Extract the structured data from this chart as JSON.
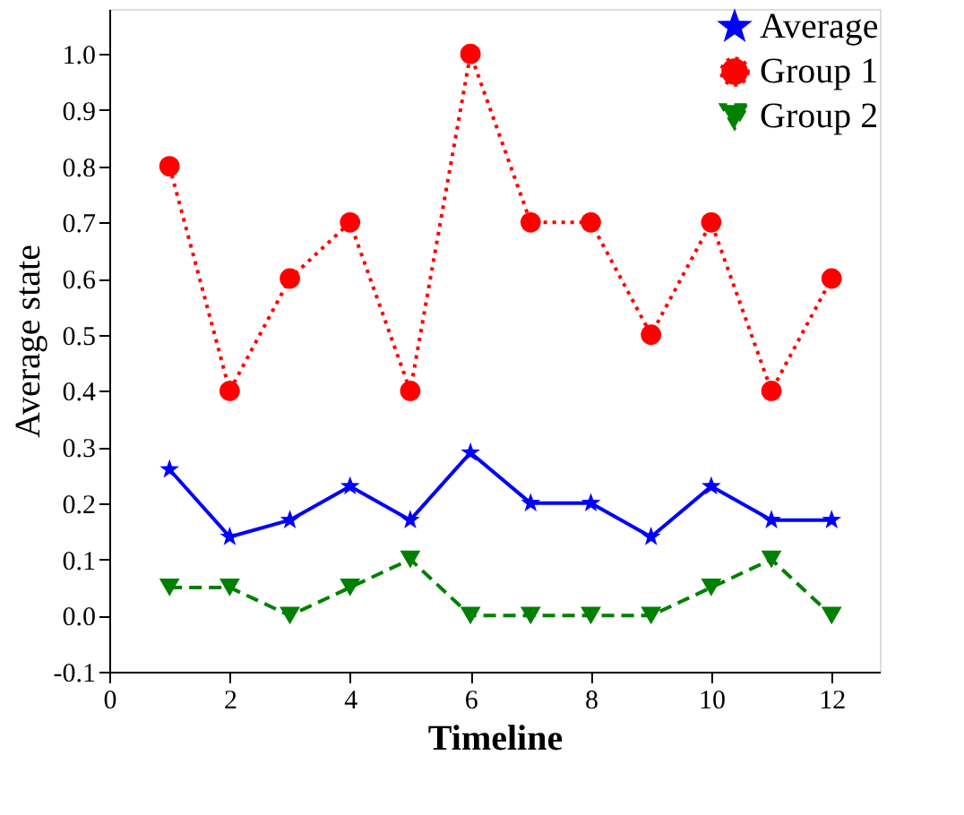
{
  "chart_data": {
    "type": "line",
    "xlabel": "Timeline",
    "ylabel": "Average state",
    "x": [
      1,
      2,
      3,
      4,
      5,
      6,
      7,
      8,
      9,
      10,
      11,
      12
    ],
    "series": [
      {
        "name": "Average",
        "color": "#0000ff",
        "marker": "star",
        "line_style": "solid",
        "values": [
          0.26,
          0.14,
          0.17,
          0.23,
          0.17,
          0.29,
          0.2,
          0.2,
          0.14,
          0.23,
          0.17,
          0.17
        ]
      },
      {
        "name": "Group 1",
        "color": "#ff0000",
        "marker": "circle",
        "line_style": "dotted",
        "values": [
          0.8,
          0.4,
          0.6,
          0.7,
          0.4,
          1.0,
          0.7,
          0.7,
          0.5,
          0.7,
          0.4,
          0.6
        ]
      },
      {
        "name": "Group 2",
        "color": "#008000",
        "marker": "triangle",
        "line_style": "dashed",
        "values": [
          0.05,
          0.05,
          0.0,
          0.05,
          0.1,
          0.0,
          0.0,
          0.0,
          0.0,
          0.05,
          0.1,
          0.0
        ]
      }
    ],
    "xlim": [
      0,
      12.8
    ],
    "xticks": [
      0,
      2,
      4,
      6,
      8,
      10,
      12
    ],
    "ylim": [
      -0.1,
      1.08
    ],
    "yticks": [
      -0.1,
      {
        "value": 0,
        "label": "0.0"
      },
      0.1,
      0.2,
      0.3,
      0.4,
      0.5,
      0.6,
      0.7,
      0.8,
      0.9,
      {
        "value": 1,
        "label": "1.0"
      }
    ],
    "grid": false,
    "legend": "top right"
  }
}
